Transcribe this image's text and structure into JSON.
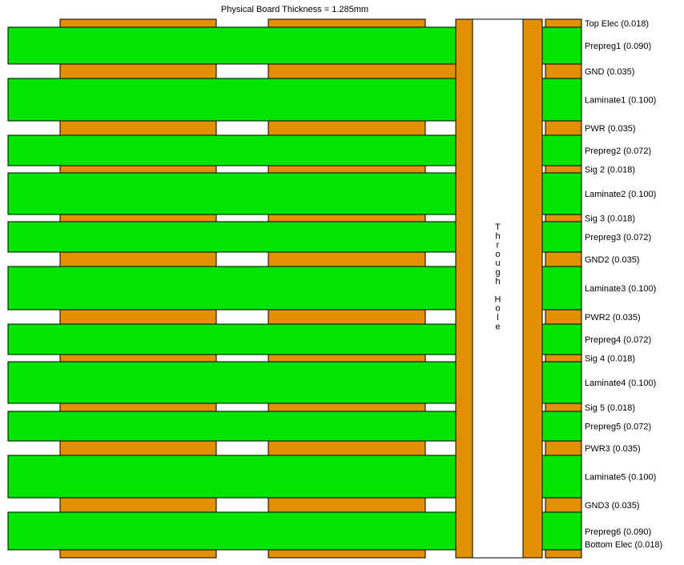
{
  "title": "Physical Board Thickness = 1.285mm",
  "colors": {
    "dielectric": "#00e400",
    "copper": "#e09000",
    "outline": "#000000",
    "hole": "#ffffff",
    "background": "#ffffff"
  },
  "through_hole_label": "Through Hole",
  "layers": [
    {
      "name": "Top Elec",
      "type": "copper",
      "thickness": 0.018,
      "label": "Top Elec (0.018)"
    },
    {
      "name": "Prepreg1",
      "type": "dielectric",
      "thickness": 0.09,
      "label": "Prepreg1 (0.090)"
    },
    {
      "name": "GND",
      "type": "copper",
      "thickness": 0.035,
      "label": "GND (0.035)"
    },
    {
      "name": "Laminate1",
      "type": "dielectric",
      "thickness": 0.1,
      "label": "Laminate1 (0.100)"
    },
    {
      "name": "PWR",
      "type": "copper",
      "thickness": 0.035,
      "label": "PWR (0.035)"
    },
    {
      "name": "Prepreg2",
      "type": "dielectric",
      "thickness": 0.072,
      "label": "Prepreg2 (0.072)"
    },
    {
      "name": "Sig 2",
      "type": "copper",
      "thickness": 0.018,
      "label": "Sig 2 (0.018)"
    },
    {
      "name": "Laminate2",
      "type": "dielectric",
      "thickness": 0.1,
      "label": "Laminate2 (0.100)"
    },
    {
      "name": "Sig 3",
      "type": "copper",
      "thickness": 0.018,
      "label": "Sig 3 (0.018)"
    },
    {
      "name": "Prepreg3",
      "type": "dielectric",
      "thickness": 0.072,
      "label": "Prepreg3 (0.072)"
    },
    {
      "name": "GND2",
      "type": "copper",
      "thickness": 0.035,
      "label": "GND2 (0.035)"
    },
    {
      "name": "Laminate3",
      "type": "dielectric",
      "thickness": 0.1,
      "label": "Laminate3 (0.100)"
    },
    {
      "name": "PWR2",
      "type": "copper",
      "thickness": 0.035,
      "label": "PWR2 (0.035)"
    },
    {
      "name": "Prepreg4",
      "type": "dielectric",
      "thickness": 0.072,
      "label": "Prepreg4 (0.072)"
    },
    {
      "name": "Sig 4",
      "type": "copper",
      "thickness": 0.018,
      "label": "Sig 4 (0.018)"
    },
    {
      "name": "Laminate4",
      "type": "dielectric",
      "thickness": 0.1,
      "label": "Laminate4 (0.100)"
    },
    {
      "name": "Sig 5",
      "type": "copper",
      "thickness": 0.018,
      "label": "Sig 5 (0.018)"
    },
    {
      "name": "Prepreg5",
      "type": "dielectric",
      "thickness": 0.072,
      "label": "Prepreg5 (0.072)"
    },
    {
      "name": "PWR3",
      "type": "copper",
      "thickness": 0.035,
      "label": "PWR3 (0.035)"
    },
    {
      "name": "Laminate5",
      "type": "dielectric",
      "thickness": 0.1,
      "label": "Laminate5 (0.100)"
    },
    {
      "name": "GND3",
      "type": "copper",
      "thickness": 0.035,
      "label": "GND3 (0.035)"
    },
    {
      "name": "Prepreg6",
      "type": "dielectric",
      "thickness": 0.09,
      "label": "Prepreg6 (0.090)"
    },
    {
      "name": "Bottom Elec",
      "type": "copper",
      "thickness": 0.018,
      "label": "Bottom Elec (0.018)"
    }
  ]
}
